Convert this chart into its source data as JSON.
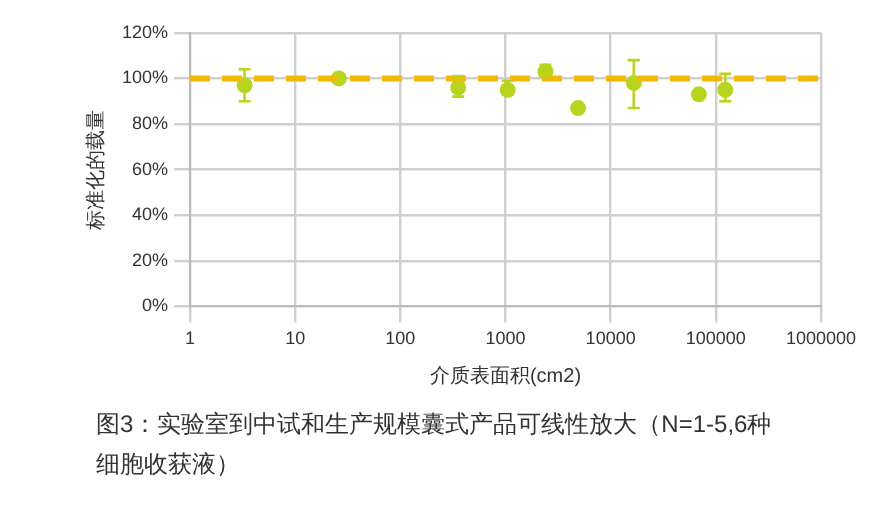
{
  "chart_data": {
    "type": "scatter",
    "xlabel": "介质表面积(cm2)",
    "ylabel": "标准化的载量",
    "x": [
      3.3,
      26,
      355,
      1050,
      2400,
      4900,
      16600,
      69000,
      123000
    ],
    "values": [
      97,
      100,
      96,
      95,
      103,
      87,
      98,
      93,
      95
    ],
    "errors": [
      [
        90,
        104
      ],
      null,
      [
        92,
        101
      ],
      [
        93,
        99
      ],
      [
        101,
        106
      ],
      null,
      [
        87,
        108
      ],
      null,
      [
        90,
        102
      ]
    ],
    "color": "#b8d41c",
    "marker": "circle",
    "log": "x",
    "xlim": [
      1,
      1000000
    ],
    "xticks": [
      1,
      10,
      100,
      1000,
      10000,
      100000,
      1000000
    ],
    "ylim": [
      0,
      120
    ],
    "yticks": [
      {
        "value": 0,
        "label": "0%"
      },
      {
        "value": 20,
        "label": "20%"
      },
      {
        "value": 40,
        "label": "40%"
      },
      {
        "value": 60,
        "label": "60%"
      },
      {
        "value": 80,
        "label": "80%"
      },
      {
        "value": 100,
        "label": "100%"
      },
      {
        "value": 120,
        "label": "120%"
      }
    ],
    "grid": true,
    "legend": false,
    "ref_lines": [
      {
        "axis": "y",
        "value": 100,
        "color": "#f5b800",
        "line_style": "dashed"
      }
    ],
    "annotations": [
      "图3：实验室到中试和生产规模囊式产品可线性放大（N=1-5,6种细胞收获液）"
    ]
  }
}
